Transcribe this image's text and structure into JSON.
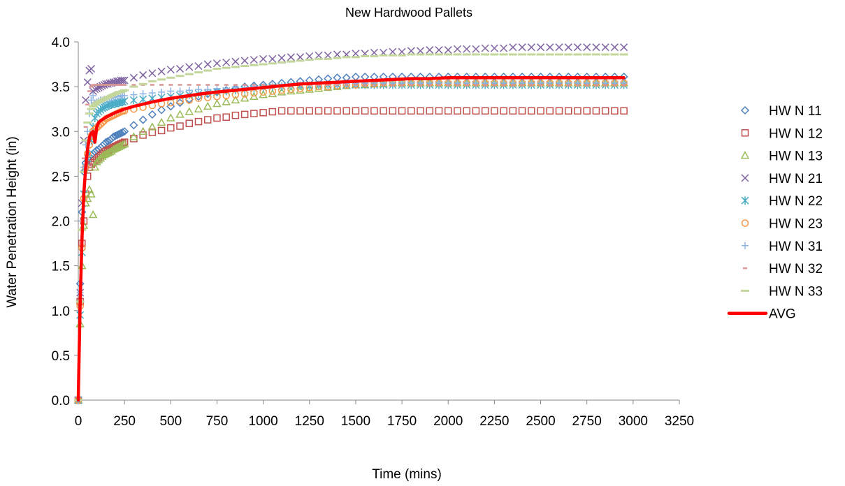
{
  "chart_data": {
    "type": "scatter",
    "title": "New Hardwood Pallets",
    "xlabel": "Time  (mins)",
    "ylabel": "Water Penetration Height  (in)",
    "xlim": [
      0,
      3250
    ],
    "ylim": [
      0,
      4.0
    ],
    "xticks": [
      0,
      250,
      500,
      750,
      1000,
      1250,
      1500,
      1750,
      2000,
      2250,
      2500,
      2750,
      3000,
      3250
    ],
    "xtick_labels": [
      "0",
      "250",
      "500",
      "750",
      "1000",
      "1250",
      "1500",
      "1750",
      "2000",
      "2250",
      "2500",
      "2750",
      "3000",
      "3250"
    ],
    "yticks": [
      0,
      0.5,
      1.0,
      1.5,
      2.0,
      2.5,
      3.0,
      3.5,
      4.0
    ],
    "ytick_labels": [
      "0.0",
      "0.5",
      "1.0",
      "1.5",
      "2.0",
      "2.5",
      "3.0",
      "3.5",
      "4.0"
    ],
    "grid": false,
    "legend_position": "right",
    "x": [
      0,
      10,
      20,
      30,
      40,
      50,
      60,
      70,
      80,
      90,
      100,
      110,
      120,
      130,
      140,
      150,
      160,
      170,
      180,
      190,
      200,
      210,
      220,
      230,
      240,
      250,
      300,
      350,
      400,
      450,
      500,
      550,
      600,
      650,
      700,
      750,
      800,
      850,
      900,
      950,
      1000,
      1050,
      1100,
      1150,
      1200,
      1250,
      1300,
      1350,
      1400,
      1450,
      1500,
      1550,
      1600,
      1650,
      1700,
      1750,
      1800,
      1850,
      1900,
      1950,
      2000,
      2050,
      2100,
      2150,
      2200,
      2250,
      2300,
      2350,
      2400,
      2450,
      2500,
      2550,
      2600,
      2650,
      2700,
      2750,
      2800,
      2850,
      2900,
      2950
    ],
    "series": [
      {
        "name": "HW N 11",
        "marker": "diamond",
        "color": "#4F81BD",
        "values": [
          0,
          1.3,
          2.1,
          2.55,
          2.65,
          2.7,
          2.72,
          2.74,
          2.75,
          2.77,
          2.79,
          2.8,
          2.82,
          2.84,
          2.86,
          2.88,
          2.89,
          2.9,
          2.92,
          2.94,
          2.95,
          2.96,
          2.97,
          2.98,
          2.99,
          3.0,
          3.07,
          3.13,
          3.19,
          3.24,
          3.28,
          3.32,
          3.36,
          3.39,
          3.42,
          3.44,
          3.46,
          3.48,
          3.5,
          3.51,
          3.52,
          3.53,
          3.54,
          3.55,
          3.56,
          3.57,
          3.58,
          3.59,
          3.6,
          3.6,
          3.61,
          3.61,
          3.61,
          3.61,
          3.61,
          3.61,
          3.61,
          3.61,
          3.61,
          3.61,
          3.61,
          3.61,
          3.61,
          3.61,
          3.61,
          3.61,
          3.61,
          3.61,
          3.61,
          3.61,
          3.61,
          3.61,
          3.61,
          3.61,
          3.61,
          3.61,
          3.61,
          3.61,
          3.61,
          3.61
        ]
      },
      {
        "name": "HW N 12",
        "marker": "square",
        "color": "#C0504D",
        "values": [
          0,
          1.1,
          1.75,
          2.0,
          2.3,
          2.5,
          2.6,
          2.63,
          2.65,
          2.67,
          2.69,
          2.71,
          2.73,
          2.75,
          2.77,
          2.78,
          2.79,
          2.8,
          2.81,
          2.82,
          2.83,
          2.84,
          2.85,
          2.86,
          2.87,
          2.88,
          2.92,
          2.96,
          2.99,
          3.01,
          3.04,
          3.06,
          3.09,
          3.11,
          3.13,
          3.15,
          3.16,
          3.18,
          3.19,
          3.2,
          3.21,
          3.22,
          3.23,
          3.23,
          3.23,
          3.23,
          3.23,
          3.23,
          3.23,
          3.23,
          3.23,
          3.23,
          3.23,
          3.23,
          3.23,
          3.23,
          3.23,
          3.23,
          3.23,
          3.23,
          3.23,
          3.23,
          3.23,
          3.23,
          3.23,
          3.23,
          3.23,
          3.23,
          3.23,
          3.23,
          3.23,
          3.23,
          3.23,
          3.23,
          3.23,
          3.23,
          3.23,
          3.23,
          3.23,
          3.23
        ]
      },
      {
        "name": "HW N 13",
        "marker": "triangle",
        "color": "#9BBB59",
        "values": [
          0,
          0.85,
          1.5,
          1.95,
          2.2,
          2.25,
          2.35,
          2.3,
          2.07,
          2.6,
          2.66,
          2.68,
          2.7,
          2.72,
          2.74,
          2.75,
          2.76,
          2.77,
          2.78,
          2.8,
          2.81,
          2.82,
          2.83,
          2.84,
          2.85,
          2.86,
          2.94,
          3.0,
          3.05,
          3.1,
          3.15,
          3.19,
          3.22,
          3.25,
          3.28,
          3.31,
          3.33,
          3.35,
          3.37,
          3.39,
          3.41,
          3.42,
          3.44,
          3.45,
          3.46,
          3.47,
          3.48,
          3.49,
          3.5,
          3.51,
          3.52,
          3.52,
          3.53,
          3.53,
          3.54,
          3.54,
          3.54,
          3.54,
          3.54,
          3.54,
          3.54,
          3.54,
          3.54,
          3.54,
          3.54,
          3.54,
          3.54,
          3.54,
          3.54,
          3.54,
          3.54,
          3.54,
          3.54,
          3.54,
          3.54,
          3.54,
          3.54,
          3.54,
          3.54,
          3.54
        ]
      },
      {
        "name": "HW N 21",
        "marker": "x",
        "color": "#8064A2",
        "values": [
          0,
          1.2,
          2.2,
          2.9,
          3.35,
          3.55,
          3.68,
          3.7,
          3.45,
          3.47,
          3.48,
          3.49,
          3.5,
          3.51,
          3.52,
          3.53,
          3.53,
          3.54,
          3.54,
          3.55,
          3.55,
          3.56,
          3.56,
          3.57,
          3.57,
          3.57,
          3.6,
          3.63,
          3.65,
          3.67,
          3.69,
          3.7,
          3.72,
          3.73,
          3.75,
          3.76,
          3.77,
          3.78,
          3.79,
          3.8,
          3.81,
          3.81,
          3.82,
          3.83,
          3.83,
          3.84,
          3.85,
          3.85,
          3.86,
          3.86,
          3.87,
          3.87,
          3.88,
          3.88,
          3.89,
          3.89,
          3.9,
          3.9,
          3.91,
          3.91,
          3.91,
          3.92,
          3.92,
          3.92,
          3.93,
          3.93,
          3.93,
          3.94,
          3.94,
          3.94,
          3.94,
          3.94,
          3.94,
          3.94,
          3.94,
          3.94,
          3.94,
          3.94,
          3.94,
          3.94
        ]
      },
      {
        "name": "HW N 22",
        "marker": "asterisk",
        "color": "#4BACC6",
        "values": [
          0,
          0.95,
          1.65,
          2.3,
          2.6,
          2.7,
          2.75,
          2.9,
          3.05,
          3.15,
          3.2,
          3.22,
          3.24,
          3.26,
          3.27,
          3.28,
          3.29,
          3.3,
          3.3,
          3.31,
          3.31,
          3.32,
          3.32,
          3.33,
          3.33,
          3.34,
          3.35,
          3.36,
          3.37,
          3.38,
          3.39,
          3.4,
          3.41,
          3.42,
          3.43,
          3.44,
          3.45,
          3.46,
          3.47,
          3.48,
          3.49,
          3.5,
          3.5,
          3.51,
          3.51,
          3.51,
          3.52,
          3.52,
          3.52,
          3.52,
          3.52,
          3.52,
          3.52,
          3.52,
          3.52,
          3.52,
          3.52,
          3.52,
          3.52,
          3.52,
          3.52,
          3.52,
          3.52,
          3.52,
          3.52,
          3.52,
          3.52,
          3.52,
          3.52,
          3.52,
          3.52,
          3.52,
          3.52,
          3.52,
          3.52,
          3.52,
          3.52,
          3.52,
          3.52,
          3.52
        ]
      },
      {
        "name": "HW N 23",
        "marker": "circle",
        "color": "#F79646",
        "values": [
          0,
          1.05,
          1.7,
          2.25,
          2.6,
          2.75,
          2.85,
          2.95,
          3.0,
          3.02,
          3.04,
          3.06,
          3.08,
          3.1,
          3.12,
          3.14,
          3.15,
          3.16,
          3.17,
          3.18,
          3.19,
          3.2,
          3.21,
          3.22,
          3.23,
          3.23,
          3.25,
          3.27,
          3.29,
          3.31,
          3.32,
          3.34,
          3.35,
          3.37,
          3.38,
          3.39,
          3.4,
          3.41,
          3.42,
          3.43,
          3.44,
          3.45,
          3.46,
          3.47,
          3.48,
          3.49,
          3.5,
          3.5,
          3.51,
          3.52,
          3.52,
          3.53,
          3.53,
          3.54,
          3.54,
          3.54,
          3.54,
          3.54,
          3.54,
          3.54,
          3.54,
          3.54,
          3.54,
          3.54,
          3.54,
          3.54,
          3.54,
          3.54,
          3.54,
          3.54,
          3.54,
          3.54,
          3.54,
          3.54,
          3.54,
          3.54,
          3.54,
          3.54,
          3.54,
          3.54
        ]
      },
      {
        "name": "HW N 31",
        "marker": "plus",
        "color": "#8EB4E3",
        "values": [
          0,
          1.2,
          2.0,
          2.6,
          2.85,
          3.0,
          3.2,
          3.35,
          3.4,
          3.32,
          3.33,
          3.34,
          3.35,
          3.35,
          3.36,
          3.36,
          3.37,
          3.37,
          3.38,
          3.38,
          3.39,
          3.39,
          3.39,
          3.4,
          3.4,
          3.4,
          3.41,
          3.42,
          3.43,
          3.44,
          3.45,
          3.45,
          3.46,
          3.47,
          3.47,
          3.48,
          3.48,
          3.49,
          3.49,
          3.5,
          3.5,
          3.51,
          3.51,
          3.52,
          3.52,
          3.52,
          3.53,
          3.53,
          3.53,
          3.54,
          3.54,
          3.54,
          3.54,
          3.54,
          3.54,
          3.54,
          3.54,
          3.54,
          3.54,
          3.54,
          3.54,
          3.54,
          3.54,
          3.54,
          3.54,
          3.54,
          3.54,
          3.54,
          3.54,
          3.54,
          3.54,
          3.54,
          3.54,
          3.54,
          3.54,
          3.54,
          3.54,
          3.54,
          3.54,
          3.54
        ]
      },
      {
        "name": "HW N 32",
        "marker": "dash",
        "color": "#D99694",
        "values": [
          0,
          1.1,
          2.0,
          2.7,
          3.05,
          3.3,
          3.45,
          3.5,
          3.52,
          3.52,
          3.52,
          3.52,
          3.52,
          3.52,
          3.52,
          3.52,
          3.52,
          3.52,
          3.52,
          3.52,
          3.52,
          3.52,
          3.52,
          3.52,
          3.52,
          3.52,
          3.52,
          3.52,
          3.52,
          3.52,
          3.52,
          3.52,
          3.52,
          3.52,
          3.52,
          3.52,
          3.52,
          3.52,
          3.52,
          3.52,
          3.52,
          3.52,
          3.52,
          3.52,
          3.52,
          3.52,
          3.52,
          3.52,
          3.52,
          3.52,
          3.52,
          3.52,
          3.52,
          3.52,
          3.52,
          3.52,
          3.52,
          3.52,
          3.52,
          3.52,
          3.52,
          3.52,
          3.52,
          3.52,
          3.52,
          3.52,
          3.52,
          3.52,
          3.52,
          3.52,
          3.52,
          3.52,
          3.52,
          3.52,
          3.52,
          3.52,
          3.52,
          3.52,
          3.52,
          3.52
        ]
      },
      {
        "name": "HW N 33",
        "marker": "longdash",
        "color": "#C3D69B",
        "values": [
          0,
          1.1,
          1.9,
          2.55,
          2.9,
          3.1,
          3.2,
          3.25,
          3.28,
          3.3,
          3.32,
          3.33,
          3.34,
          3.35,
          3.36,
          3.37,
          3.38,
          3.39,
          3.4,
          3.41,
          3.42,
          3.43,
          3.44,
          3.44,
          3.45,
          3.46,
          3.5,
          3.53,
          3.56,
          3.58,
          3.6,
          3.62,
          3.64,
          3.66,
          3.68,
          3.7,
          3.71,
          3.72,
          3.73,
          3.74,
          3.75,
          3.76,
          3.77,
          3.78,
          3.79,
          3.8,
          3.81,
          3.81,
          3.82,
          3.83,
          3.83,
          3.84,
          3.84,
          3.85,
          3.85,
          3.85,
          3.86,
          3.86,
          3.86,
          3.86,
          3.86,
          3.86,
          3.86,
          3.86,
          3.86,
          3.86,
          3.86,
          3.86,
          3.86,
          3.86,
          3.86,
          3.86,
          3.86,
          3.86,
          3.86,
          3.86,
          3.86,
          3.86,
          3.86,
          3.86
        ]
      }
    ],
    "avg": {
      "name": "AVG",
      "color": "#FF0000",
      "x": [
        0,
        5,
        10,
        15,
        20,
        25,
        30,
        40,
        50,
        60,
        70,
        80,
        90,
        100,
        110,
        120,
        150,
        200,
        250,
        300,
        400,
        500,
        600,
        700,
        800,
        900,
        1000,
        1100,
        1200,
        1300,
        1400,
        1500,
        1600,
        1700,
        1800,
        1900,
        2000,
        2200,
        2400,
        2600,
        2800,
        2950
      ],
      "values": [
        0,
        0.55,
        1.05,
        1.45,
        1.8,
        2.05,
        2.3,
        2.6,
        2.8,
        2.93,
        2.98,
        3.0,
        2.88,
        3.05,
        3.1,
        3.12,
        3.16,
        3.21,
        3.25,
        3.28,
        3.33,
        3.37,
        3.4,
        3.43,
        3.45,
        3.47,
        3.49,
        3.51,
        3.53,
        3.54,
        3.55,
        3.56,
        3.57,
        3.58,
        3.59,
        3.59,
        3.6,
        3.6,
        3.6,
        3.6,
        3.6,
        3.6
      ]
    }
  }
}
